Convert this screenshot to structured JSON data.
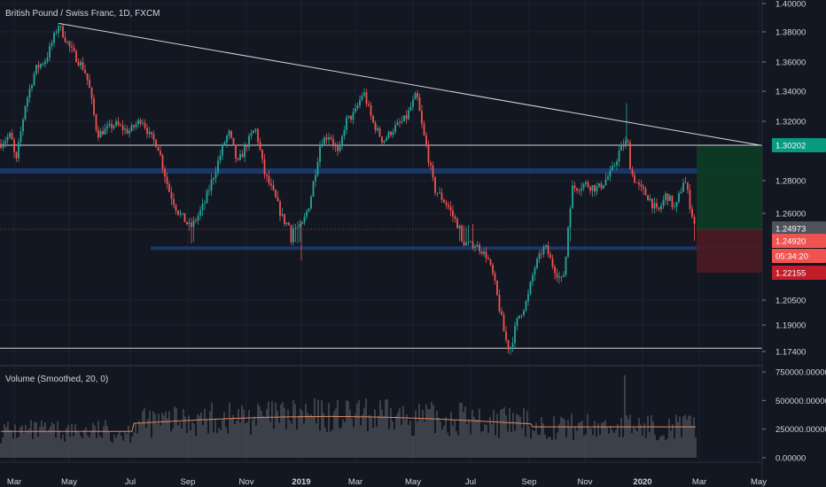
{
  "chart_data": {
    "type": "candlestick",
    "title": "British Pound / Swiss Franc, 1D, FXCM",
    "symbol": "GBPCHF",
    "interval": "1D",
    "source": "FXCM",
    "ylim": [
      1.165,
      1.4
    ],
    "y_ticks": [
      "1.40000",
      "1.38000",
      "1.36000",
      "1.34000",
      "1.32000",
      "1.28000",
      "1.26000",
      "1.20500",
      "1.19000",
      "1.17400"
    ],
    "x_ticks": [
      "Mar",
      "May",
      "Jul",
      "Sep",
      "Nov",
      "2019",
      "Mar",
      "May",
      "Jul",
      "Sep",
      "Nov",
      "2020",
      "Mar",
      "May"
    ],
    "x_bold_ticks": [
      "2019",
      "2020"
    ],
    "price_path": [
      {
        "x": 0,
        "y": 1.303
      },
      {
        "x": 12,
        "y": 1.31
      },
      {
        "x": 18,
        "y": 1.29
      },
      {
        "x": 28,
        "y": 1.33
      },
      {
        "x": 40,
        "y": 1.355
      },
      {
        "x": 52,
        "y": 1.362
      },
      {
        "x": 60,
        "y": 1.375
      },
      {
        "x": 66,
        "y": 1.385
      },
      {
        "x": 80,
        "y": 1.368
      },
      {
        "x": 95,
        "y": 1.355
      },
      {
        "x": 100,
        "y": 1.345
      },
      {
        "x": 110,
        "y": 1.31
      },
      {
        "x": 130,
        "y": 1.318
      },
      {
        "x": 145,
        "y": 1.312
      },
      {
        "x": 160,
        "y": 1.322
      },
      {
        "x": 168,
        "y": 1.31
      },
      {
        "x": 178,
        "y": 1.302
      },
      {
        "x": 190,
        "y": 1.275
      },
      {
        "x": 200,
        "y": 1.262
      },
      {
        "x": 215,
        "y": 1.25
      },
      {
        "x": 230,
        "y": 1.265
      },
      {
        "x": 245,
        "y": 1.29
      },
      {
        "x": 258,
        "y": 1.312
      },
      {
        "x": 268,
        "y": 1.29
      },
      {
        "x": 280,
        "y": 1.305
      },
      {
        "x": 288,
        "y": 1.315
      },
      {
        "x": 298,
        "y": 1.285
      },
      {
        "x": 310,
        "y": 1.27
      },
      {
        "x": 320,
        "y": 1.255
      },
      {
        "x": 330,
        "y": 1.25
      },
      {
        "x": 340,
        "y": 1.25
      },
      {
        "x": 350,
        "y": 1.268
      },
      {
        "x": 362,
        "y": 1.305
      },
      {
        "x": 372,
        "y": 1.31
      },
      {
        "x": 382,
        "y": 1.295
      },
      {
        "x": 390,
        "y": 1.32
      },
      {
        "x": 400,
        "y": 1.325
      },
      {
        "x": 410,
        "y": 1.34
      },
      {
        "x": 420,
        "y": 1.32
      },
      {
        "x": 432,
        "y": 1.305
      },
      {
        "x": 445,
        "y": 1.315
      },
      {
        "x": 458,
        "y": 1.322
      },
      {
        "x": 470,
        "y": 1.338
      },
      {
        "x": 478,
        "y": 1.31
      },
      {
        "x": 490,
        "y": 1.275
      },
      {
        "x": 505,
        "y": 1.265
      },
      {
        "x": 520,
        "y": 1.248
      },
      {
        "x": 538,
        "y": 1.245
      },
      {
        "x": 550,
        "y": 1.235
      },
      {
        "x": 560,
        "y": 1.21
      },
      {
        "x": 570,
        "y": 1.182
      },
      {
        "x": 575,
        "y": 1.175
      },
      {
        "x": 585,
        "y": 1.195
      },
      {
        "x": 595,
        "y": 1.205
      },
      {
        "x": 605,
        "y": 1.23
      },
      {
        "x": 615,
        "y": 1.245
      },
      {
        "x": 625,
        "y": 1.225
      },
      {
        "x": 635,
        "y": 1.215
      },
      {
        "x": 645,
        "y": 1.275
      },
      {
        "x": 660,
        "y": 1.278
      },
      {
        "x": 675,
        "y": 1.275
      },
      {
        "x": 690,
        "y": 1.285
      },
      {
        "x": 700,
        "y": 1.3
      },
      {
        "x": 708,
        "y": 1.305
      },
      {
        "x": 712,
        "y": 1.285
      },
      {
        "x": 722,
        "y": 1.275
      },
      {
        "x": 732,
        "y": 1.27
      },
      {
        "x": 742,
        "y": 1.26
      },
      {
        "x": 752,
        "y": 1.272
      },
      {
        "x": 762,
        "y": 1.262
      },
      {
        "x": 772,
        "y": 1.282
      },
      {
        "x": 785,
        "y": 1.249
      }
    ],
    "volume": {
      "title": "Volume (Smoothed, 20, 0)",
      "ylim": [
        0,
        750000
      ],
      "y_ticks": [
        "750000.00000",
        "500000.00000",
        "250000.00000",
        "0.00000"
      ]
    },
    "lines": {
      "trendline": {
        "from": {
          "x": 66,
          "y": 1.386
        },
        "to": {
          "x": 900,
          "y": 1.298
        }
      },
      "horizontal_levels": [
        1.30202,
        1.176
      ]
    },
    "zones": [
      1.286,
      1.2475
    ],
    "position": {
      "entry": 1.2492,
      "target": 1.30202,
      "stop": 1.22155
    },
    "last_price": 1.2492,
    "price_labels": [
      {
        "text": "1.30202",
        "kind": "target"
      },
      {
        "text": "1.24973",
        "kind": "marker"
      },
      {
        "text": "1.24920",
        "kind": "last"
      },
      {
        "text": "05:34:20",
        "kind": "countdown"
      },
      {
        "text": "1.22155",
        "kind": "stop"
      }
    ],
    "colors": {
      "background": "#131722",
      "up": "#26a69a",
      "down": "#ef5350",
      "grid": "#1e222d",
      "axis_text": "#d1d4dc",
      "volume_bar": "#4f5258",
      "volume_ma": "#e08a5a",
      "zone": "#1d3b70",
      "target_zone": "#0c3a25",
      "stop_zone": "#4a1a22",
      "line": "#d1d4dc"
    }
  }
}
